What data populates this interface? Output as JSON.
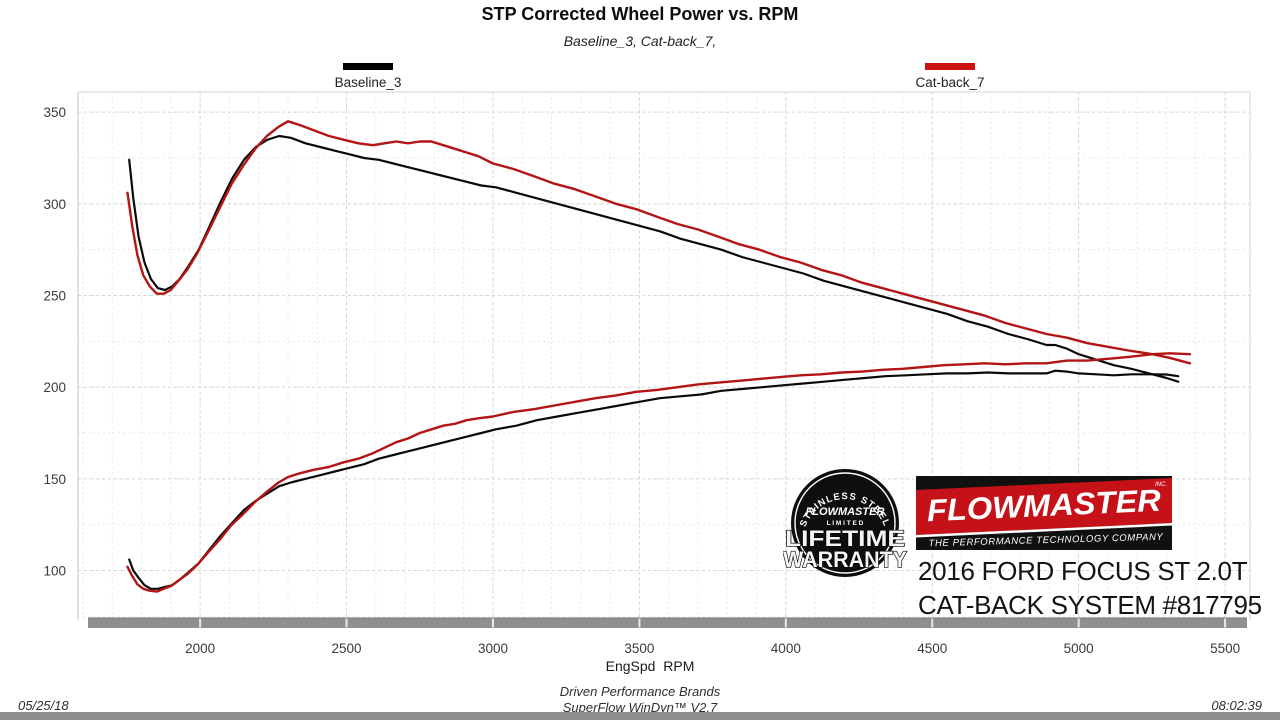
{
  "header": {
    "title": "STP Corrected Wheel Power vs. RPM",
    "subtitle": "Baseline_3, Cat-back_7,"
  },
  "legend": [
    {
      "label": "Baseline_3",
      "color": "#000000"
    },
    {
      "label": "Cat-back_7",
      "color": "#cc1111"
    }
  ],
  "footer": {
    "date": "05/25/18",
    "time": "08:02:39",
    "center_line1": "Driven Performance Brands",
    "center_line2": "SuperFlow WinDyn™ V2.7"
  },
  "branding": {
    "badge": {
      "arc_top": "STAINLESS STEEL",
      "brand": "FLOWMASTER",
      "limited": "L I M I T E D",
      "big_line1": "LIFETIME",
      "big_line2": "WARRANTY"
    },
    "logo": {
      "name": "FLOWMASTER",
      "inc": "INC.",
      "tagline": "THE PERFORMANCE TECHNOLOGY COMPANY",
      "red": "#c41218"
    },
    "vehicle_line1": "2016 FORD FOCUS ST 2.0T",
    "vehicle_line2": "CAT-BACK SYSTEM #817795"
  },
  "chart_data": {
    "type": "line",
    "title": "STP Corrected Wheel Power vs. RPM",
    "xlabel": "EngSpd  RPM",
    "ylabel": "",
    "x_range": [
      1583,
      5585
    ],
    "y_range": [
      73,
      361
    ],
    "x_ticks": [
      2000,
      2500,
      3000,
      3500,
      4000,
      4500,
      5000,
      5500
    ],
    "y_ticks": [
      100,
      150,
      200,
      250,
      300,
      350
    ],
    "minor_x_step": 100,
    "minor_y_step": 25,
    "grid": true,
    "legend_position": "top",
    "series": [
      {
        "name": "Baseline_3",
        "role": "torque",
        "color": "#0a0a0a",
        "width": 2.2,
        "points": [
          [
            1758,
            324
          ],
          [
            1772,
            303
          ],
          [
            1790,
            282
          ],
          [
            1810,
            268
          ],
          [
            1832,
            259
          ],
          [
            1856,
            254
          ],
          [
            1880,
            253
          ],
          [
            1905,
            255
          ],
          [
            1930,
            259
          ],
          [
            1960,
            266
          ],
          [
            1995,
            275
          ],
          [
            2030,
            287
          ],
          [
            2070,
            301
          ],
          [
            2110,
            314
          ],
          [
            2150,
            324
          ],
          [
            2190,
            331
          ],
          [
            2230,
            335
          ],
          [
            2270,
            337
          ],
          [
            2310,
            336
          ],
          [
            2360,
            333
          ],
          [
            2410,
            331
          ],
          [
            2460,
            329
          ],
          [
            2510,
            327
          ],
          [
            2560,
            325
          ],
          [
            2610,
            324
          ],
          [
            2660,
            322
          ],
          [
            2710,
            320
          ],
          [
            2760,
            318
          ],
          [
            2810,
            316
          ],
          [
            2860,
            314
          ],
          [
            2910,
            312
          ],
          [
            2960,
            310
          ],
          [
            3010,
            309
          ],
          [
            3080,
            306
          ],
          [
            3150,
            303
          ],
          [
            3220,
            300
          ],
          [
            3290,
            297
          ],
          [
            3360,
            294
          ],
          [
            3430,
            291
          ],
          [
            3500,
            288
          ],
          [
            3570,
            285
          ],
          [
            3640,
            281
          ],
          [
            3710,
            278
          ],
          [
            3780,
            275
          ],
          [
            3850,
            271
          ],
          [
            3920,
            268
          ],
          [
            3990,
            265
          ],
          [
            4060,
            262
          ],
          [
            4130,
            258
          ],
          [
            4200,
            255
          ],
          [
            4270,
            252
          ],
          [
            4340,
            249
          ],
          [
            4410,
            246
          ],
          [
            4480,
            243
          ],
          [
            4550,
            240
          ],
          [
            4620,
            236
          ],
          [
            4690,
            233
          ],
          [
            4760,
            229
          ],
          [
            4830,
            226
          ],
          [
            4890,
            223
          ],
          [
            4920,
            223
          ],
          [
            4960,
            221
          ],
          [
            5000,
            218
          ],
          [
            5060,
            215
          ],
          [
            5120,
            212
          ],
          [
            5180,
            210
          ],
          [
            5252,
            207
          ],
          [
            5300,
            205
          ],
          [
            5340,
            203
          ]
        ]
      },
      {
        "name": "Baseline_3",
        "role": "power",
        "color": "#0a0a0a",
        "width": 2.2,
        "points": [
          [
            1758,
            106
          ],
          [
            1772,
            100
          ],
          [
            1790,
            96
          ],
          [
            1810,
            92
          ],
          [
            1832,
            90
          ],
          [
            1856,
            90
          ],
          [
            1880,
            91
          ],
          [
            1905,
            92
          ],
          [
            1930,
            95
          ],
          [
            1960,
            99
          ],
          [
            1995,
            104
          ],
          [
            2030,
            111
          ],
          [
            2070,
            119
          ],
          [
            2110,
            126
          ],
          [
            2150,
            133
          ],
          [
            2190,
            138
          ],
          [
            2230,
            142
          ],
          [
            2270,
            146
          ],
          [
            2310,
            148
          ],
          [
            2360,
            150
          ],
          [
            2410,
            152
          ],
          [
            2460,
            154
          ],
          [
            2510,
            156
          ],
          [
            2560,
            158
          ],
          [
            2610,
            161
          ],
          [
            2660,
            163
          ],
          [
            2710,
            165
          ],
          [
            2760,
            167
          ],
          [
            2810,
            169
          ],
          [
            2860,
            171
          ],
          [
            2910,
            173
          ],
          [
            2960,
            175
          ],
          [
            3010,
            177
          ],
          [
            3080,
            179
          ],
          [
            3150,
            182
          ],
          [
            3220,
            184
          ],
          [
            3290,
            186
          ],
          [
            3360,
            188
          ],
          [
            3430,
            190
          ],
          [
            3500,
            192
          ],
          [
            3570,
            194
          ],
          [
            3640,
            195
          ],
          [
            3710,
            196
          ],
          [
            3780,
            198
          ],
          [
            3850,
            199
          ],
          [
            3920,
            200
          ],
          [
            3990,
            201
          ],
          [
            4060,
            202
          ],
          [
            4130,
            203
          ],
          [
            4200,
            204
          ],
          [
            4270,
            205
          ],
          [
            4340,
            206
          ],
          [
            4410,
            206.5
          ],
          [
            4480,
            207
          ],
          [
            4550,
            207.5
          ],
          [
            4620,
            207.5
          ],
          [
            4690,
            208
          ],
          [
            4760,
            207.5
          ],
          [
            4830,
            207.5
          ],
          [
            4890,
            207.5
          ],
          [
            4920,
            209
          ],
          [
            4960,
            208.5
          ],
          [
            5000,
            207.5
          ],
          [
            5060,
            207
          ],
          [
            5120,
            206.5
          ],
          [
            5180,
            207
          ],
          [
            5252,
            207
          ],
          [
            5300,
            206.9
          ],
          [
            5340,
            206
          ]
        ]
      },
      {
        "name": "Cat-back_7",
        "role": "torque",
        "color": "#b31414",
        "width": 2.4,
        "points": [
          [
            1752,
            306
          ],
          [
            1768,
            288
          ],
          [
            1786,
            272
          ],
          [
            1806,
            261
          ],
          [
            1828,
            255
          ],
          [
            1852,
            251
          ],
          [
            1876,
            251
          ],
          [
            1900,
            253
          ],
          [
            1926,
            258
          ],
          [
            1956,
            264
          ],
          [
            1990,
            273
          ],
          [
            2028,
            285
          ],
          [
            2068,
            298
          ],
          [
            2108,
            311
          ],
          [
            2148,
            321
          ],
          [
            2188,
            330
          ],
          [
            2228,
            337
          ],
          [
            2268,
            342
          ],
          [
            2300,
            345
          ],
          [
            2340,
            343
          ],
          [
            2390,
            340
          ],
          [
            2440,
            337
          ],
          [
            2490,
            335
          ],
          [
            2540,
            333
          ],
          [
            2590,
            332
          ],
          [
            2630,
            333
          ],
          [
            2670,
            334
          ],
          [
            2710,
            333
          ],
          [
            2750,
            334
          ],
          [
            2790,
            334
          ],
          [
            2830,
            332
          ],
          [
            2870,
            330
          ],
          [
            2910,
            328
          ],
          [
            2950,
            326
          ],
          [
            3000,
            322
          ],
          [
            3070,
            319
          ],
          [
            3140,
            315
          ],
          [
            3210,
            311
          ],
          [
            3280,
            308
          ],
          [
            3350,
            304
          ],
          [
            3420,
            300
          ],
          [
            3490,
            297
          ],
          [
            3560,
            293
          ],
          [
            3630,
            289
          ],
          [
            3700,
            286
          ],
          [
            3770,
            282
          ],
          [
            3840,
            278
          ],
          [
            3910,
            275
          ],
          [
            3980,
            271
          ],
          [
            4050,
            268
          ],
          [
            4120,
            264
          ],
          [
            4190,
            261
          ],
          [
            4260,
            257
          ],
          [
            4330,
            254
          ],
          [
            4400,
            251
          ],
          [
            4470,
            248
          ],
          [
            4540,
            245
          ],
          [
            4610,
            242
          ],
          [
            4680,
            239
          ],
          [
            4750,
            235
          ],
          [
            4820,
            232
          ],
          [
            4890,
            229
          ],
          [
            4960,
            227
          ],
          [
            5030,
            224
          ],
          [
            5100,
            222
          ],
          [
            5170,
            220
          ],
          [
            5252,
            218
          ],
          [
            5310,
            216
          ],
          [
            5380,
            213
          ]
        ]
      },
      {
        "name": "Cat-back_7",
        "role": "power",
        "color": "#b31414",
        "width": 2.4,
        "points": [
          [
            1752,
            102
          ],
          [
            1768,
            97
          ],
          [
            1786,
            92.5
          ],
          [
            1806,
            90
          ],
          [
            1828,
            89
          ],
          [
            1852,
            88.5
          ],
          [
            1876,
            90
          ],
          [
            1900,
            91.5
          ],
          [
            1926,
            94.5
          ],
          [
            1956,
            98
          ],
          [
            1990,
            103
          ],
          [
            2028,
            110
          ],
          [
            2068,
            117
          ],
          [
            2108,
            125
          ],
          [
            2148,
            131
          ],
          [
            2188,
            137.5
          ],
          [
            2228,
            143
          ],
          [
            2268,
            148
          ],
          [
            2300,
            151
          ],
          [
            2340,
            153
          ],
          [
            2390,
            155
          ],
          [
            2440,
            156.5
          ],
          [
            2490,
            159
          ],
          [
            2540,
            161
          ],
          [
            2590,
            164
          ],
          [
            2630,
            167
          ],
          [
            2670,
            170
          ],
          [
            2710,
            172
          ],
          [
            2750,
            175
          ],
          [
            2790,
            177
          ],
          [
            2830,
            179
          ],
          [
            2870,
            180
          ],
          [
            2910,
            182
          ],
          [
            2950,
            183
          ],
          [
            3000,
            184
          ],
          [
            3070,
            186.5
          ],
          [
            3140,
            188
          ],
          [
            3210,
            190
          ],
          [
            3280,
            192
          ],
          [
            3350,
            194
          ],
          [
            3420,
            195.5
          ],
          [
            3490,
            197.5
          ],
          [
            3560,
            198.5
          ],
          [
            3630,
            200
          ],
          [
            3700,
            201.5
          ],
          [
            3770,
            202.5
          ],
          [
            3840,
            203.5
          ],
          [
            3910,
            204.5
          ],
          [
            3980,
            205.5
          ],
          [
            4050,
            206.5
          ],
          [
            4120,
            207
          ],
          [
            4190,
            208
          ],
          [
            4260,
            208.5
          ],
          [
            4330,
            209.5
          ],
          [
            4400,
            210
          ],
          [
            4470,
            211
          ],
          [
            4540,
            212
          ],
          [
            4610,
            212.5
          ],
          [
            4680,
            213
          ],
          [
            4750,
            212.5
          ],
          [
            4820,
            213
          ],
          [
            4890,
            213
          ],
          [
            4960,
            214.5
          ],
          [
            5030,
            214.5
          ],
          [
            5100,
            215.5
          ],
          [
            5170,
            216.5
          ],
          [
            5252,
            218
          ],
          [
            5310,
            218.5
          ],
          [
            5380,
            218
          ]
        ]
      }
    ]
  }
}
